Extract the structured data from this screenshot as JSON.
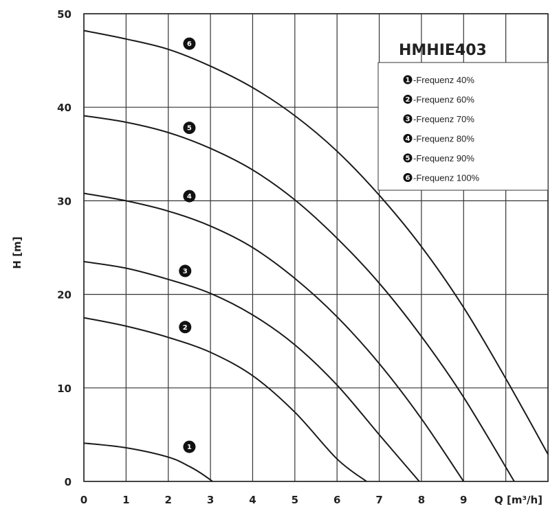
{
  "chart_data": {
    "type": "line",
    "title": "HMHIE403",
    "xlabel": "Q [m³/h]",
    "ylabel": "H [m]",
    "xlim": [
      0,
      11
    ],
    "ylim": [
      0,
      50
    ],
    "x_ticks": [
      0,
      1,
      2,
      3,
      4,
      5,
      6,
      7,
      8,
      9
    ],
    "y_ticks": [
      0,
      10,
      20,
      30,
      40,
      50
    ],
    "grid": true,
    "legend_position": "top-right",
    "series": [
      {
        "name": "-Frequenz 40%",
        "marker": "1",
        "x": [
          0,
          1,
          2,
          2.5,
          2.8,
          3.05
        ],
        "y": [
          4.1,
          3.6,
          2.6,
          1.6,
          0.8,
          0
        ]
      },
      {
        "name": "-Frequenz 60%",
        "marker": "2",
        "x": [
          0,
          1,
          2,
          3,
          4,
          5,
          6,
          6.7
        ],
        "y": [
          17.5,
          16.6,
          15.4,
          13.8,
          11.3,
          7.4,
          2.4,
          0
        ]
      },
      {
        "name": "-Frequenz 70%",
        "marker": "3",
        "x": [
          0,
          1,
          2,
          3,
          4,
          5,
          6,
          7,
          7.95
        ],
        "y": [
          23.5,
          22.8,
          21.6,
          20.1,
          17.8,
          14.6,
          10.3,
          5.0,
          0
        ]
      },
      {
        "name": "-Frequenz 80%",
        "marker": "4",
        "x": [
          0,
          1,
          2,
          3,
          4,
          5,
          6,
          7,
          8,
          9
        ],
        "y": [
          30.8,
          30.0,
          28.9,
          27.3,
          25.0,
          21.7,
          17.6,
          12.6,
          6.7,
          0
        ]
      },
      {
        "name": "-Frequenz 90%",
        "marker": "5",
        "x": [
          0,
          1,
          2,
          3,
          4,
          5,
          6,
          7,
          8,
          9,
          10.2
        ],
        "y": [
          39.1,
          38.4,
          37.3,
          35.6,
          33.3,
          30.1,
          26.0,
          21.2,
          15.5,
          9.0,
          0
        ]
      },
      {
        "name": "-Frequenz 100%",
        "marker": "6",
        "x": [
          0,
          1,
          2,
          3,
          4,
          5,
          6,
          7,
          8,
          9,
          10,
          11
        ],
        "y": [
          48.2,
          47.3,
          46.2,
          44.4,
          42.1,
          39.1,
          35.3,
          30.6,
          25.1,
          18.6,
          11.0,
          2.9
        ]
      }
    ],
    "marker_positions": [
      {
        "marker": "1",
        "x": 2.5,
        "y": 3.7
      },
      {
        "marker": "2",
        "x": 2.4,
        "y": 16.5
      },
      {
        "marker": "3",
        "x": 2.4,
        "y": 22.5
      },
      {
        "marker": "4",
        "x": 2.5,
        "y": 30.5
      },
      {
        "marker": "5",
        "x": 2.5,
        "y": 37.8
      },
      {
        "marker": "6",
        "x": 2.5,
        "y": 46.8
      }
    ]
  }
}
